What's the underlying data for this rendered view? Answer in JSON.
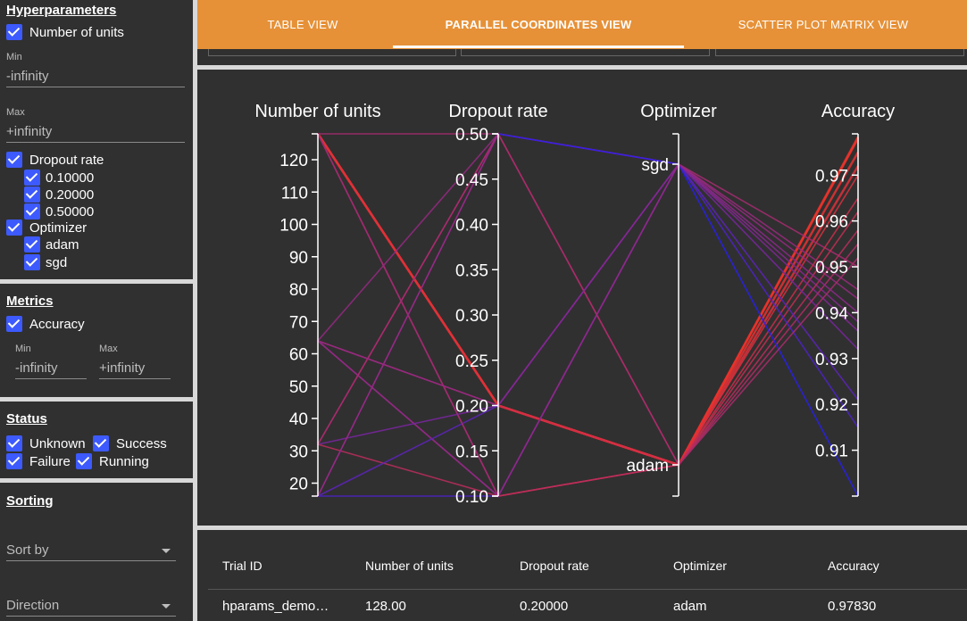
{
  "sidebar": {
    "hyperparameters": {
      "title": "Hyperparameters",
      "units_label": "Number of units",
      "min_label": "Min",
      "min_value": "-infinity",
      "max_label": "Max",
      "max_value": "+infinity",
      "dropout_label": "Dropout rate",
      "dropout_options": [
        "0.10000",
        "0.20000",
        "0.50000"
      ],
      "optimizer_label": "Optimizer",
      "optimizer_options": [
        "adam",
        "sgd"
      ]
    },
    "metrics": {
      "title": "Metrics",
      "accuracy_label": "Accuracy",
      "min_label": "Min",
      "min_value": "-infinity",
      "max_label": "Max",
      "max_value": "+infinity"
    },
    "status": {
      "title": "Status",
      "unknown": "Unknown",
      "success": "Success",
      "failure": "Failure",
      "running": "Running"
    },
    "sorting": {
      "title": "Sorting",
      "sort_by": "Sort by",
      "direction": "Direction"
    }
  },
  "tabs": [
    "TABLE VIEW",
    "PARALLEL COORDINATES VIEW",
    "SCATTER PLOT MATRIX VIEW"
  ],
  "active_tab": 1,
  "colors": {
    "accent": "#e69138",
    "panel": "#303030",
    "checkbox": "#3d5afe"
  },
  "chart_data": {
    "type": "parallel_coordinates",
    "axes": [
      {
        "name": "Number of units",
        "range": [
          16,
          128
        ],
        "ticks": [
          "120",
          "110",
          "100",
          "90",
          "80",
          "70",
          "60",
          "50",
          "40",
          "30",
          "20"
        ],
        "tick_values": [
          120,
          110,
          100,
          90,
          80,
          70,
          60,
          50,
          40,
          30,
          20
        ]
      },
      {
        "name": "Dropout rate",
        "range": [
          0.1,
          0.5
        ],
        "ticks": [
          "0.50",
          "0.45",
          "0.40",
          "0.35",
          "0.30",
          "0.25",
          "0.20",
          "0.15",
          "0.10"
        ],
        "tick_values": [
          0.5,
          0.45,
          0.4,
          0.35,
          0.3,
          0.25,
          0.2,
          0.15,
          0.1
        ]
      },
      {
        "name": "Optimizer",
        "categorical": true,
        "ticks": [
          "sgd",
          "adam"
        ]
      },
      {
        "name": "Accuracy",
        "range": [
          0.9,
          0.979
        ],
        "ticks": [
          "0.97",
          "0.96",
          "0.95",
          "0.94",
          "0.93",
          "0.92",
          "0.91"
        ],
        "tick_values": [
          0.97,
          0.96,
          0.95,
          0.94,
          0.93,
          0.92,
          0.91
        ]
      }
    ],
    "trials": [
      [
        128,
        0.2,
        "adam",
        0.9783
      ],
      [
        128,
        0.2,
        "adam",
        0.978
      ],
      [
        128,
        0.2,
        "adam",
        0.975
      ],
      [
        128,
        0.2,
        "adam",
        0.972
      ],
      [
        128,
        0.1,
        "adam",
        0.97
      ],
      [
        128,
        0.5,
        "sgd",
        0.95
      ],
      [
        64,
        0.5,
        "sgd",
        0.943
      ],
      [
        64,
        0.2,
        "adam",
        0.965
      ],
      [
        64,
        0.1,
        "adam",
        0.962
      ],
      [
        64,
        0.1,
        "sgd",
        0.938
      ],
      [
        32,
        0.5,
        "sgd",
        0.936
      ],
      [
        32,
        0.2,
        "sgd",
        0.932
      ],
      [
        32,
        0.1,
        "adam",
        0.958
      ],
      [
        32,
        0.5,
        "adam",
        0.955
      ],
      [
        16,
        0.5,
        "sgd",
        0.9
      ],
      [
        16,
        0.2,
        "sgd",
        0.921
      ],
      [
        16,
        0.1,
        "sgd",
        0.915
      ],
      [
        16,
        0.5,
        "adam",
        0.952
      ],
      [
        64,
        0.2,
        "sgd",
        0.94
      ],
      [
        128,
        0.1,
        "sgd",
        0.945
      ]
    ]
  },
  "table": {
    "headers": [
      "Trial ID",
      "Number of units",
      "Dropout rate",
      "Optimizer",
      "Accuracy"
    ],
    "rows": [
      [
        "hparams_demo…",
        "128.00",
        "0.20000",
        "adam",
        "0.97830"
      ]
    ]
  }
}
